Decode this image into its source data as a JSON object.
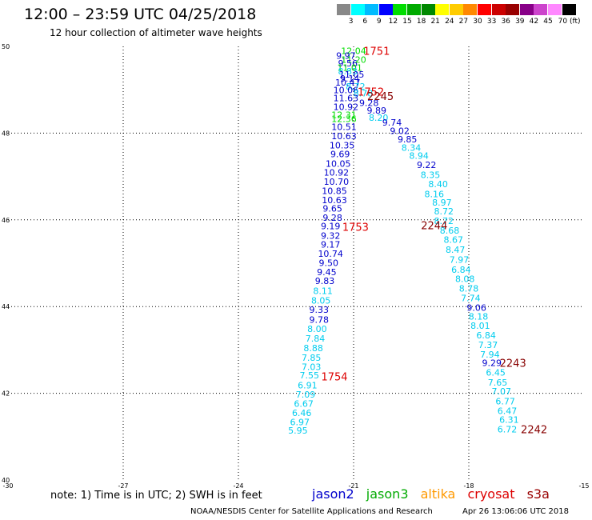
{
  "header": {
    "title": "12:00 – 23:59 UTC 04/25/2018",
    "subtitle": "12 hour collection of altimeter wave heights"
  },
  "colorbar": {
    "swatches": [
      "#888888",
      "#00ffff",
      "#00bbff",
      "#0000ff",
      "#00dd00",
      "#00aa00",
      "#008800",
      "#ffff00",
      "#ffcc00",
      "#ff8800",
      "#ff0000",
      "#cc0000",
      "#990000",
      "#880088",
      "#cc44cc",
      "#ff88ff",
      "#000000"
    ],
    "labels": [
      "3",
      "6",
      "9",
      "12",
      "15",
      "18",
      "21",
      "24",
      "27",
      "30",
      "33",
      "36",
      "39",
      "42",
      "45",
      "70 (ft)"
    ]
  },
  "footer": {
    "note": "note: 1) Time is in UTC; 2) SWH is in feet",
    "credit": "NOAA/NESDIS Center for Satellite Applications and Research",
    "generated": "Apr 26 13:06:06 UTC 2018"
  },
  "legend": [
    {
      "name": "jason2",
      "color": "#0000cc"
    },
    {
      "name": "jason3",
      "color": "#00aa00"
    },
    {
      "name": "altika",
      "color": "#ff9900"
    },
    {
      "name": "cryosat",
      "color": "#dd0000"
    },
    {
      "name": "s3a",
      "color": "#990000"
    }
  ],
  "chart_data": {
    "type": "scatter",
    "xlim": [
      -30,
      -15
    ],
    "ylim": [
      40,
      50
    ],
    "x_ticks": [
      -30,
      -27,
      -24,
      -21,
      -18,
      -15
    ],
    "y_ticks": [
      40,
      42,
      44,
      46,
      48,
      50
    ],
    "x_tick_labels": [
      "-30",
      "-27",
      "-24",
      "-21",
      "-18",
      "-15"
    ],
    "y_tick_labels": [
      "40",
      "42",
      "44",
      "46",
      "48",
      "50"
    ],
    "grid": true,
    "colors": {
      "cyan": "#00ccee",
      "blue": "#0000cc",
      "green": "#00dd00",
      "red": "#dd0000",
      "darkred": "#880000"
    },
    "track_a": [
      {
        "x": -21.0,
        "y": 49.9,
        "v": "12.04",
        "c": "green"
      },
      {
        "x": -21.2,
        "y": 49.79,
        "v": "9.97",
        "c": "blue"
      },
      {
        "x": -21.0,
        "y": 49.7,
        "v": "11.20",
        "c": "green"
      },
      {
        "x": -21.15,
        "y": 49.61,
        "v": "9.56",
        "c": "blue"
      },
      {
        "x": -21.1,
        "y": 49.51,
        "v": "11.01",
        "c": "green"
      },
      {
        "x": -21.15,
        "y": 49.43,
        "v": "8.83",
        "c": "cyan"
      },
      {
        "x": -21.05,
        "y": 49.35,
        "v": "11.05",
        "c": "blue"
      },
      {
        "x": -21.1,
        "y": 49.26,
        "v": "9.14",
        "c": "blue"
      },
      {
        "x": -21.15,
        "y": 49.17,
        "v": "10.47",
        "c": "blue"
      },
      {
        "x": -20.95,
        "y": 49.08,
        "v": "8.72",
        "c": "cyan"
      },
      {
        "x": -21.2,
        "y": 48.99,
        "v": "10.06",
        "c": "blue"
      },
      {
        "x": -20.75,
        "y": 48.92,
        "v": "8.78",
        "c": "cyan"
      },
      {
        "x": -21.2,
        "y": 48.81,
        "v": "11.63",
        "c": "blue"
      },
      {
        "x": -20.6,
        "y": 48.7,
        "v": "9.28",
        "c": "blue"
      },
      {
        "x": -21.2,
        "y": 48.61,
        "v": "10.92",
        "c": "blue"
      },
      {
        "x": -20.4,
        "y": 48.52,
        "v": "9.89",
        "c": "blue"
      },
      {
        "x": -21.25,
        "y": 48.42,
        "v": "12.31",
        "c": "green"
      },
      {
        "x": -20.35,
        "y": 48.36,
        "v": "8.20",
        "c": "cyan"
      },
      {
        "x": -21.25,
        "y": 48.33,
        "v": "12.36",
        "c": "green"
      },
      {
        "x": -20.0,
        "y": 48.25,
        "v": "9.74",
        "c": "blue"
      },
      {
        "x": -21.25,
        "y": 48.15,
        "v": "10.51",
        "c": "blue"
      },
      {
        "x": -19.8,
        "y": 48.05,
        "v": "9.02",
        "c": "blue"
      },
      {
        "x": -21.25,
        "y": 47.93,
        "v": "10.63",
        "c": "blue"
      },
      {
        "x": -19.6,
        "y": 47.86,
        "v": "9.85",
        "c": "blue"
      },
      {
        "x": -21.3,
        "y": 47.72,
        "v": "10.35",
        "c": "blue"
      },
      {
        "x": -19.5,
        "y": 47.67,
        "v": "8.34",
        "c": "cyan"
      },
      {
        "x": -21.35,
        "y": 47.52,
        "v": "9.69",
        "c": "blue"
      },
      {
        "x": -19.3,
        "y": 47.48,
        "v": "8.94",
        "c": "cyan"
      },
      {
        "x": -21.4,
        "y": 47.3,
        "v": "10.05",
        "c": "blue"
      },
      {
        "x": -19.1,
        "y": 47.27,
        "v": "9.22",
        "c": "blue"
      },
      {
        "x": -21.45,
        "y": 47.09,
        "v": "10.92",
        "c": "blue"
      },
      {
        "x": -19.0,
        "y": 47.04,
        "v": "8.35",
        "c": "cyan"
      },
      {
        "x": -21.45,
        "y": 46.88,
        "v": "10.70",
        "c": "blue"
      },
      {
        "x": -18.8,
        "y": 46.83,
        "v": "8.40",
        "c": "cyan"
      },
      {
        "x": -21.5,
        "y": 46.67,
        "v": "10.85",
        "c": "blue"
      },
      {
        "x": -18.9,
        "y": 46.6,
        "v": "8.16",
        "c": "cyan"
      },
      {
        "x": -21.5,
        "y": 46.46,
        "v": "10.63",
        "c": "blue"
      },
      {
        "x": -18.7,
        "y": 46.4,
        "v": "8.97",
        "c": "cyan"
      },
      {
        "x": -21.55,
        "y": 46.26,
        "v": "9.65",
        "c": "blue"
      },
      {
        "x": -18.65,
        "y": 46.2,
        "v": "8.72",
        "c": "cyan"
      },
      {
        "x": -21.55,
        "y": 46.05,
        "v": "9.28",
        "c": "blue"
      },
      {
        "x": -18.65,
        "y": 45.98,
        "v": "8.72",
        "c": "cyan"
      },
      {
        "x": -21.6,
        "y": 45.86,
        "v": "9.19",
        "c": "blue"
      },
      {
        "x": -18.5,
        "y": 45.76,
        "v": "8.68",
        "c": "cyan"
      },
      {
        "x": -21.6,
        "y": 45.64,
        "v": "9.32",
        "c": "blue"
      },
      {
        "x": -18.4,
        "y": 45.54,
        "v": "8.67",
        "c": "cyan"
      },
      {
        "x": -21.6,
        "y": 45.43,
        "v": "9.17",
        "c": "blue"
      },
      {
        "x": -18.35,
        "y": 45.31,
        "v": "8.47",
        "c": "cyan"
      },
      {
        "x": -21.6,
        "y": 45.22,
        "v": "10.74",
        "c": "blue"
      },
      {
        "x": -18.25,
        "y": 45.08,
        "v": "7.97",
        "c": "cyan"
      },
      {
        "x": -21.65,
        "y": 45.01,
        "v": "9.50",
        "c": "blue"
      },
      {
        "x": -18.2,
        "y": 44.85,
        "v": "6.84",
        "c": "cyan"
      },
      {
        "x": -21.7,
        "y": 44.8,
        "v": "9.45",
        "c": "blue"
      },
      {
        "x": -18.1,
        "y": 44.64,
        "v": "8.08",
        "c": "cyan"
      },
      {
        "x": -21.75,
        "y": 44.59,
        "v": "9.83",
        "c": "blue"
      },
      {
        "x": -18.0,
        "y": 44.42,
        "v": "8.78",
        "c": "cyan"
      },
      {
        "x": -21.8,
        "y": 44.36,
        "v": "8.11",
        "c": "cyan"
      },
      {
        "x": -17.95,
        "y": 44.2,
        "v": "7.74",
        "c": "cyan"
      },
      {
        "x": -21.85,
        "y": 44.14,
        "v": "8.05",
        "c": "cyan"
      },
      {
        "x": -17.8,
        "y": 43.98,
        "v": "9.06",
        "c": "blue"
      },
      {
        "x": -21.9,
        "y": 43.93,
        "v": "9.33",
        "c": "blue"
      },
      {
        "x": -17.75,
        "y": 43.77,
        "v": "8.18",
        "c": "cyan"
      },
      {
        "x": -21.9,
        "y": 43.7,
        "v": "9.78",
        "c": "blue"
      },
      {
        "x": -17.7,
        "y": 43.56,
        "v": "8.01",
        "c": "cyan"
      },
      {
        "x": -21.95,
        "y": 43.49,
        "v": "8.00",
        "c": "cyan"
      },
      {
        "x": -17.55,
        "y": 43.34,
        "v": "6.84",
        "c": "cyan"
      },
      {
        "x": -22.0,
        "y": 43.27,
        "v": "7.84",
        "c": "cyan"
      },
      {
        "x": -17.5,
        "y": 43.12,
        "v": "7.37",
        "c": "cyan"
      },
      {
        "x": -22.05,
        "y": 43.04,
        "v": "8.88",
        "c": "cyan"
      },
      {
        "x": -17.45,
        "y": 42.9,
        "v": "7.94",
        "c": "cyan"
      },
      {
        "x": -22.1,
        "y": 42.82,
        "v": "7.85",
        "c": "cyan"
      },
      {
        "x": -17.4,
        "y": 42.7,
        "v": "9.29",
        "c": "blue"
      },
      {
        "x": -22.1,
        "y": 42.61,
        "v": "7.03",
        "c": "cyan"
      },
      {
        "x": -17.3,
        "y": 42.48,
        "v": "6.45",
        "c": "cyan"
      },
      {
        "x": -22.15,
        "y": 42.42,
        "v": "7.55",
        "c": "cyan"
      },
      {
        "x": -17.25,
        "y": 42.25,
        "v": "7.65",
        "c": "cyan"
      },
      {
        "x": -22.2,
        "y": 42.19,
        "v": "6.91",
        "c": "cyan"
      },
      {
        "x": -17.15,
        "y": 42.05,
        "v": "7.07",
        "c": "cyan"
      },
      {
        "x": -22.25,
        "y": 41.97,
        "v": "7.09",
        "c": "cyan"
      },
      {
        "x": -17.05,
        "y": 41.82,
        "v": "6.77",
        "c": "cyan"
      },
      {
        "x": -22.3,
        "y": 41.76,
        "v": "6.67",
        "c": "cyan"
      },
      {
        "x": -17.0,
        "y": 41.6,
        "v": "6.47",
        "c": "cyan"
      },
      {
        "x": -22.35,
        "y": 41.55,
        "v": "6.46",
        "c": "cyan"
      },
      {
        "x": -16.95,
        "y": 41.39,
        "v": "6.31",
        "c": "cyan"
      },
      {
        "x": -22.4,
        "y": 41.34,
        "v": "6.97",
        "c": "cyan"
      },
      {
        "x": -17.0,
        "y": 41.17,
        "v": "6.72",
        "c": "cyan"
      },
      {
        "x": -22.45,
        "y": 41.14,
        "v": "5.95",
        "c": "cyan"
      }
    ],
    "pass_labels": [
      {
        "x": -20.4,
        "y": 49.9,
        "v": "1751",
        "c": "red"
      },
      {
        "x": -20.55,
        "y": 48.96,
        "v": "1752",
        "c": "red"
      },
      {
        "x": -20.3,
        "y": 48.86,
        "v": "2245",
        "c": "darkred"
      },
      {
        "x": -20.95,
        "y": 45.84,
        "v": "1753",
        "c": "red"
      },
      {
        "x": -18.9,
        "y": 45.88,
        "v": "2244",
        "c": "darkred"
      },
      {
        "x": -21.5,
        "y": 42.39,
        "v": "1754",
        "c": "red"
      },
      {
        "x": -16.85,
        "y": 42.7,
        "v": "2243",
        "c": "darkred"
      },
      {
        "x": -16.3,
        "y": 41.17,
        "v": "2242",
        "c": "darkred"
      }
    ]
  }
}
